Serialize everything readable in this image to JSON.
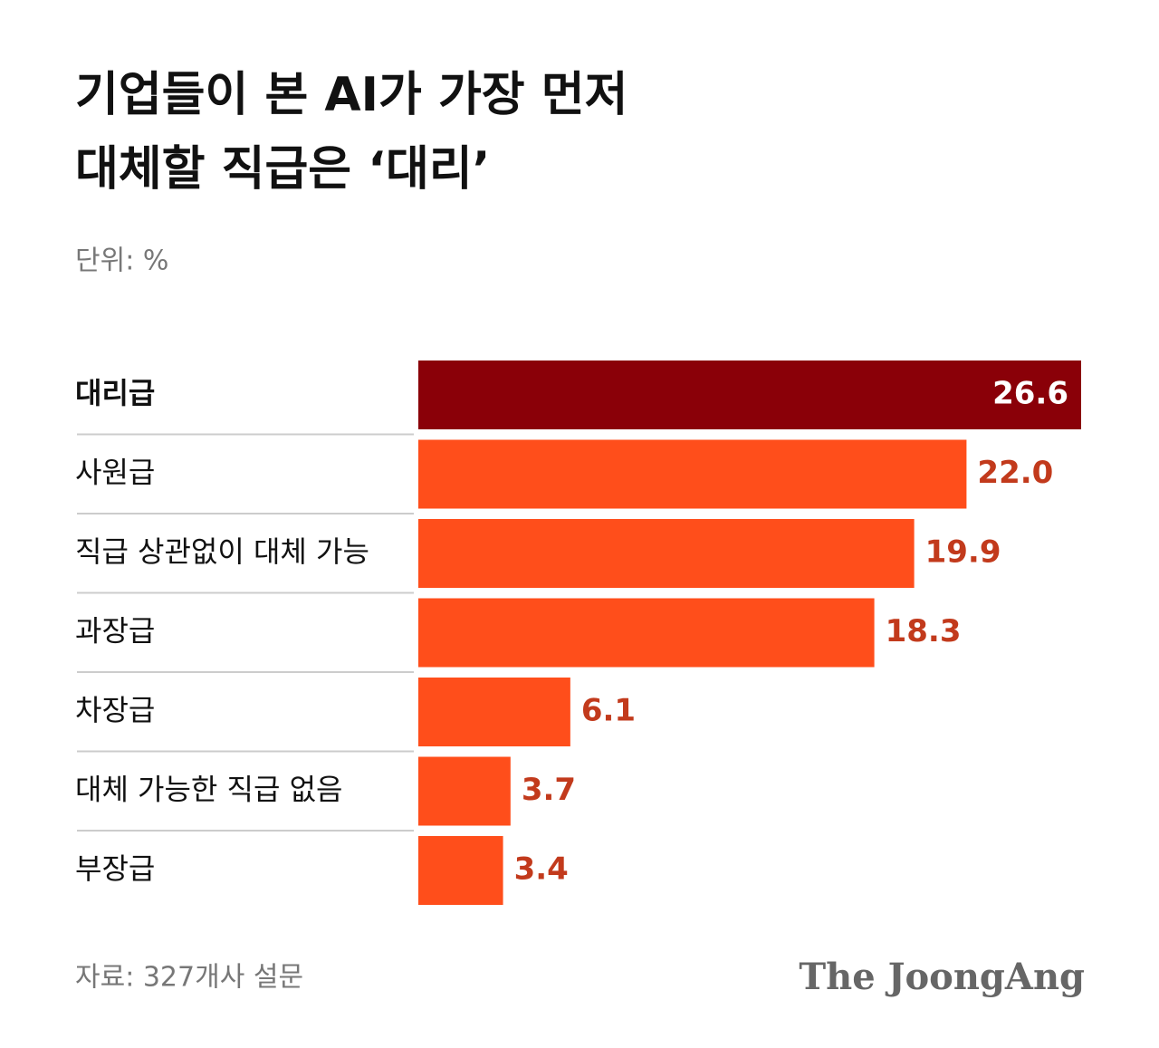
{
  "chart_data": {
    "type": "barh",
    "title": [
      "기업들이 본 AI가 가장 먼저",
      "대체할 직급은 ‘대리’"
    ],
    "subtitle": "단위: %",
    "categories": [
      "대리급",
      "사원급",
      "직급 상관없이 대체 가능",
      "과장급",
      "차장급",
      "대체 가능한 직급 없음",
      "부장급"
    ],
    "values": [
      26.6,
      22.0,
      19.9,
      18.3,
      6.1,
      3.7,
      3.4
    ],
    "value_labels": [
      "26.6",
      "22.0",
      "19.9",
      "18.3",
      "6.1",
      "3.7",
      "3.4"
    ],
    "colors": [
      "#8a0008",
      "#ff4e1b",
      "#ff4e1b",
      "#ff4e1b",
      "#ff4e1b",
      "#ff4e1b",
      "#ff4e1b"
    ],
    "xlim": [
      0,
      26.6
    ],
    "source": "자료: 327개사 설문",
    "brand": "The JoongAng"
  }
}
